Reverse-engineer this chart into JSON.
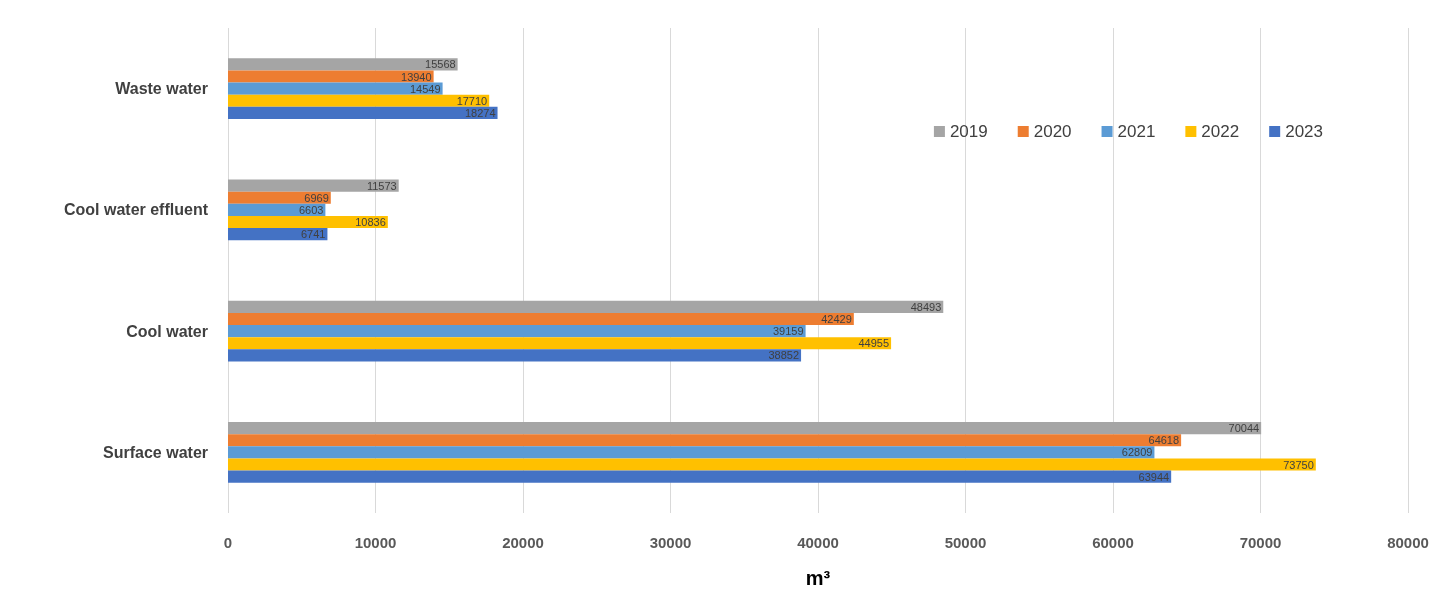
{
  "chart_data": {
    "type": "bar",
    "orientation": "horizontal",
    "xlabel": "m³",
    "categories": [
      "Waste water",
      "Cool water effluent",
      "Cool water",
      "Surface water"
    ],
    "series": [
      {
        "name": "2019",
        "color": "#a5a5a5",
        "values": [
          15568,
          11573,
          48493,
          70044
        ]
      },
      {
        "name": "2020",
        "color": "#ed7d31",
        "values": [
          13940,
          6969,
          42429,
          64618
        ]
      },
      {
        "name": "2021",
        "color": "#5b9bd5",
        "values": [
          14549,
          6603,
          39159,
          62809
        ]
      },
      {
        "name": "2022",
        "color": "#ffc000",
        "values": [
          17710,
          10836,
          44955,
          73750
        ]
      },
      {
        "name": "2023",
        "color": "#4472c4",
        "values": [
          18274,
          6741,
          38852,
          63944
        ]
      }
    ],
    "xlim": [
      0,
      80000
    ],
    "xticks": [
      0,
      10000,
      20000,
      30000,
      40000,
      50000,
      60000,
      70000,
      80000
    ],
    "grid": "x",
    "legend": "top right",
    "data_labels": true
  }
}
